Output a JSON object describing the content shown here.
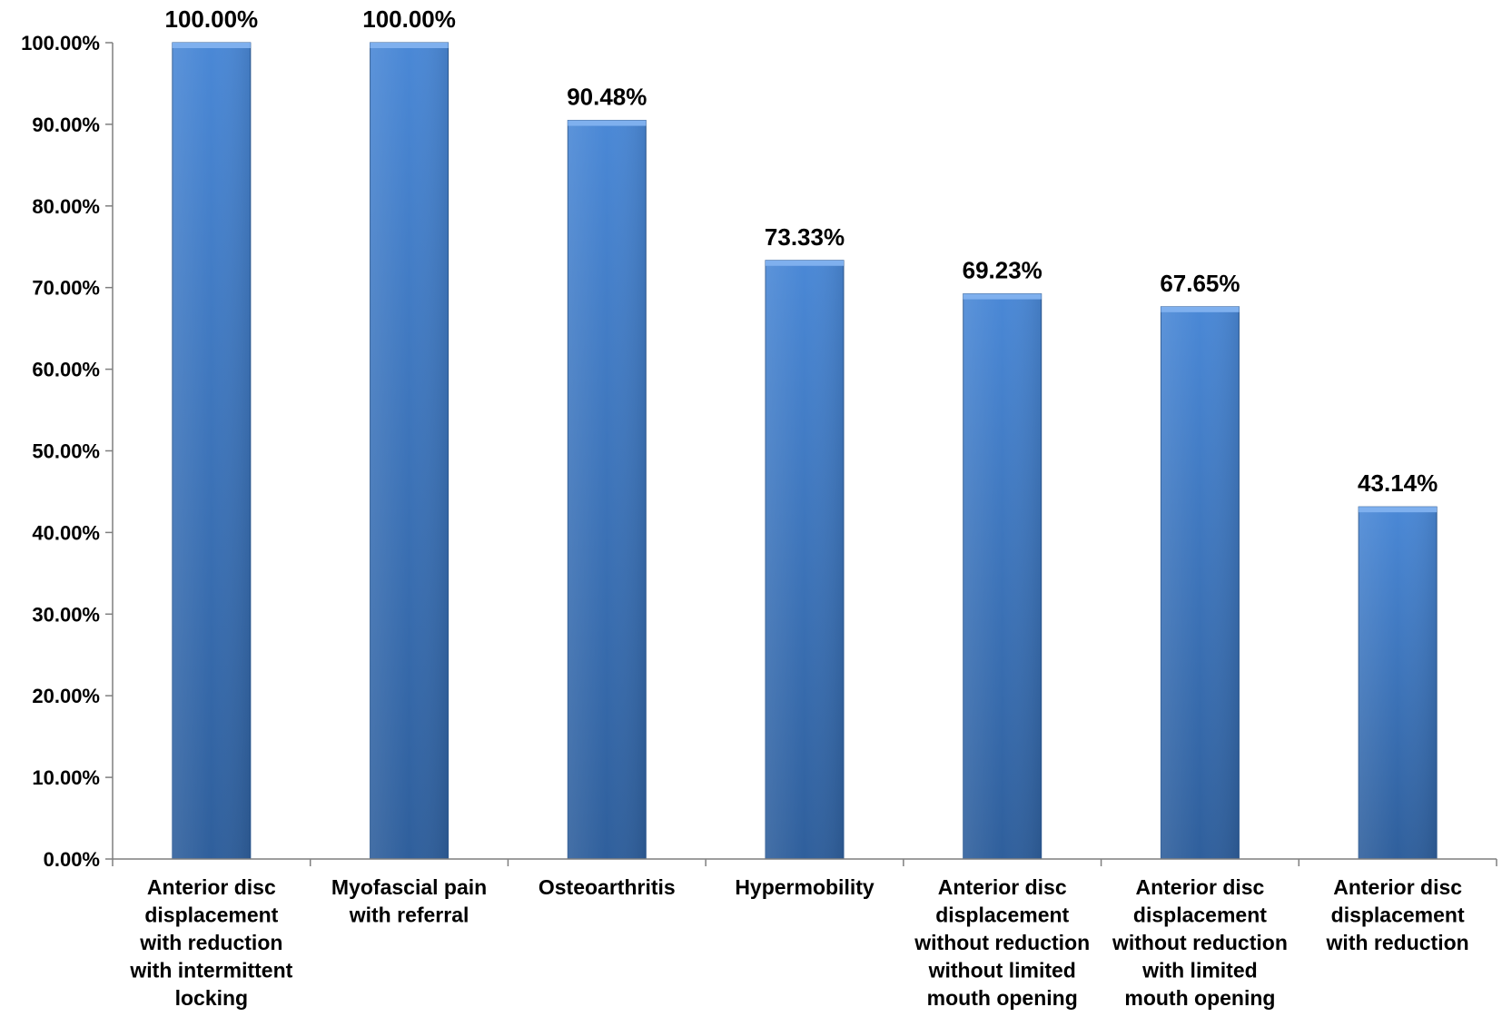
{
  "chart_data": {
    "type": "bar",
    "title": "",
    "xlabel": "",
    "ylabel": "",
    "ylim": [
      0,
      100
    ],
    "y_tick_step": 10,
    "y_tick_format": "percent-2dp",
    "grid": false,
    "legend": "none",
    "bar_color": "#3d78c2",
    "categories": [
      "Anterior disc displacement with reduction with intermittent locking",
      "Myofascial pain with referral",
      "Osteoarthritis",
      "Hypermobility",
      "Anterior disc displacement without reduction without limited mouth opening",
      "Anterior disc displacement without reduction with limited mouth opening",
      "Anterior disc displacement with reduction"
    ],
    "category_lines": [
      [
        "Anterior disc",
        "displacement",
        "with reduction",
        "with intermittent",
        "locking"
      ],
      [
        "Myofascial pain",
        "with referral"
      ],
      [
        "Osteoarthritis"
      ],
      [
        "Hypermobility"
      ],
      [
        "Anterior disc",
        "displacement",
        "without reduction",
        "without limited",
        "mouth opening"
      ],
      [
        "Anterior disc",
        "displacement",
        "without reduction",
        "with limited",
        "mouth opening"
      ],
      [
        "Anterior disc",
        "displacement",
        "with reduction"
      ]
    ],
    "values": [
      100.0,
      100.0,
      90.48,
      73.33,
      69.23,
      67.65,
      43.14
    ],
    "data_labels": [
      "100.00%",
      "100.00%",
      "90.48%",
      "73.33%",
      "69.23%",
      "67.65%",
      "43.14%"
    ],
    "y_tick_labels": [
      "0.00%",
      "10.00%",
      "20.00%",
      "30.00%",
      "40.00%",
      "50.00%",
      "60.00%",
      "70.00%",
      "80.00%",
      "90.00%",
      "100.00%"
    ]
  }
}
